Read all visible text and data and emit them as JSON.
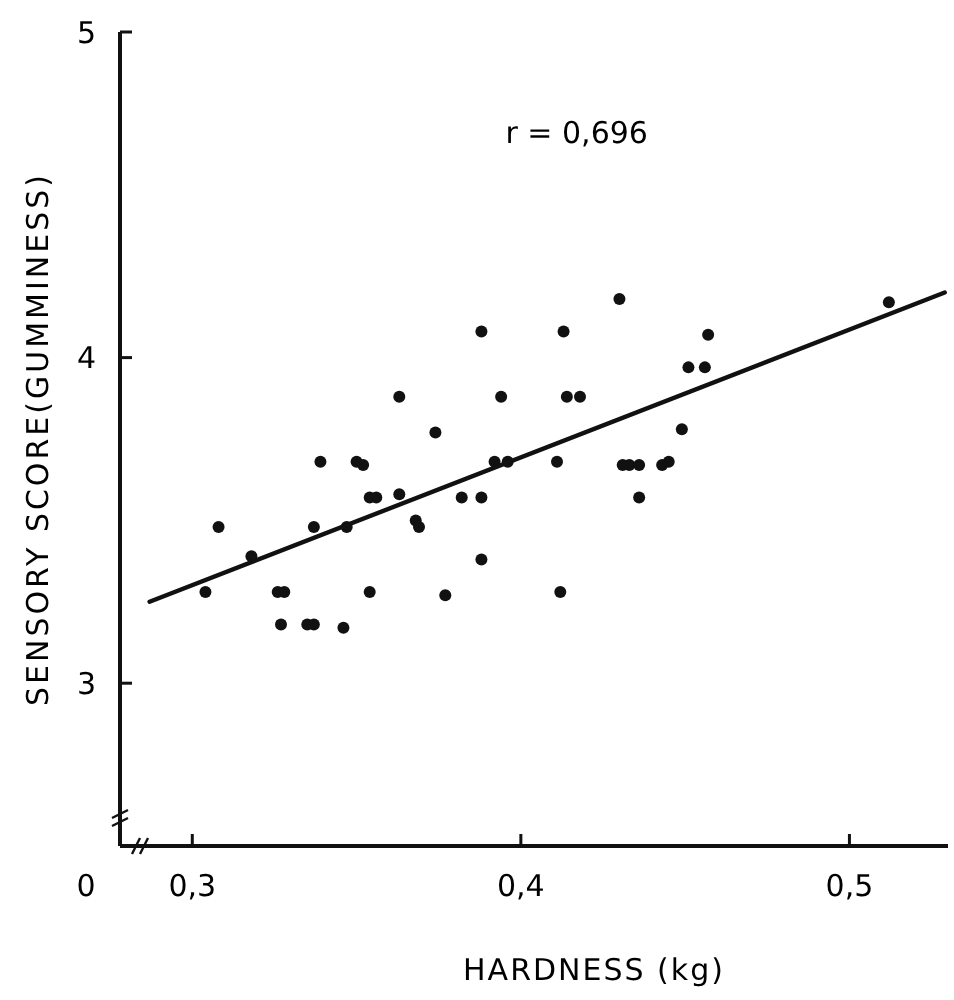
{
  "chart_data": {
    "type": "scatter",
    "xlabel": "HARDNESS (kg)",
    "ylabel": "SENSORY  SCORE(GUMMINESS)",
    "annotations": [
      "r = 0,696",
      "0"
    ],
    "xlim": [
      0.278,
      0.53
    ],
    "ylim": [
      2.5,
      5
    ],
    "xticks": [
      {
        "value": 0.3,
        "label": "0,3"
      },
      {
        "value": 0.4,
        "label": "0,4"
      },
      {
        "value": 0.5,
        "label": "0,5"
      }
    ],
    "yticks": [
      3,
      4,
      5
    ],
    "grid": false,
    "marker": "circle",
    "series": [
      {
        "color": "#111111",
        "x": [
          0.304,
          0.308,
          0.318,
          0.326,
          0.328,
          0.327,
          0.335,
          0.337,
          0.337,
          0.339,
          0.346,
          0.347,
          0.35,
          0.352,
          0.354,
          0.356,
          0.354,
          0.363,
          0.363,
          0.368,
          0.369,
          0.374,
          0.377,
          0.382,
          0.388,
          0.388,
          0.388,
          0.392,
          0.396,
          0.394,
          0.411,
          0.412,
          0.413,
          0.414,
          0.418,
          0.43,
          0.431,
          0.433,
          0.436,
          0.436,
          0.443,
          0.445,
          0.449,
          0.451,
          0.456,
          0.457,
          0.512
        ],
        "values": [
          3.28,
          3.48,
          3.39,
          3.28,
          3.28,
          3.18,
          3.18,
          3.18,
          3.48,
          3.68,
          3.17,
          3.48,
          3.68,
          3.67,
          3.57,
          3.57,
          3.28,
          3.58,
          3.88,
          3.5,
          3.48,
          3.77,
          3.27,
          3.57,
          4.08,
          3.57,
          3.38,
          3.68,
          3.68,
          3.88,
          3.68,
          3.28,
          4.08,
          3.88,
          3.88,
          4.18,
          3.67,
          3.67,
          3.67,
          3.57,
          3.67,
          3.68,
          3.78,
          3.97,
          3.97,
          4.07,
          4.17
        ]
      },
      {
        "type": "line",
        "color": "#111111",
        "x": [
          0.287,
          0.529
        ],
        "values": [
          3.25,
          4.2
        ],
        "marker": "none",
        "line_style": "solid"
      }
    ]
  }
}
